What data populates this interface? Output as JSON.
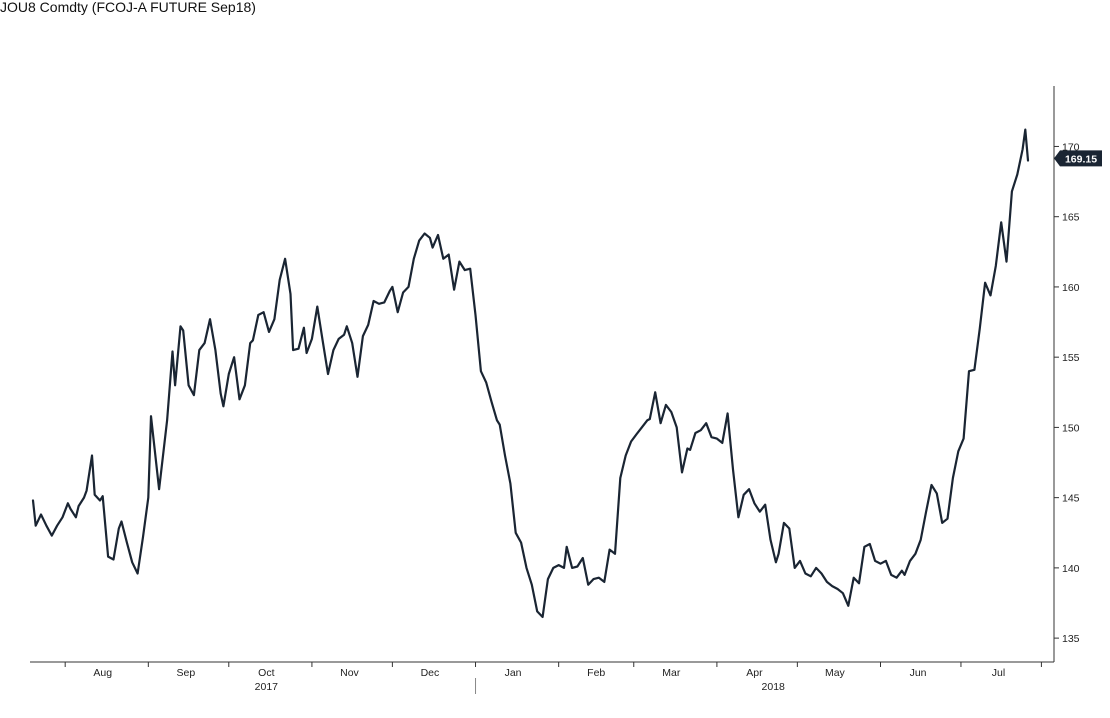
{
  "title": "JOU8 Comdty (FCOJ-A FUTURE Sep18)",
  "chart_data": {
    "type": "line",
    "title": "JOU8 Comdty (FCOJ-A FUTURE Sep18)",
    "xlabel": "",
    "ylabel": "",
    "y_axis_side": "right",
    "ylim": [
      133.3,
      175.3
    ],
    "y_ticks": [
      135,
      140,
      145,
      150,
      155,
      160,
      165,
      170
    ],
    "x_range": [
      "2017-07-20",
      "2018-07-26"
    ],
    "x_ticks": [
      {
        "date": "2017-08-15",
        "label": "Aug"
      },
      {
        "date": "2017-09-15",
        "label": "Sep"
      },
      {
        "date": "2017-10-15",
        "label": "Oct"
      },
      {
        "date": "2017-11-15",
        "label": "Nov"
      },
      {
        "date": "2017-12-15",
        "label": "Dec"
      },
      {
        "date": "2018-01-15",
        "label": "Jan"
      },
      {
        "date": "2018-02-15",
        "label": "Feb"
      },
      {
        "date": "2018-03-15",
        "label": "Mar"
      },
      {
        "date": "2018-04-15",
        "label": "Apr"
      },
      {
        "date": "2018-05-15",
        "label": "May"
      },
      {
        "date": "2018-06-15",
        "label": "Jun"
      },
      {
        "date": "2018-07-15",
        "label": "Jul"
      }
    ],
    "year_labels": [
      {
        "date": "2017-10-15",
        "label": "2017"
      },
      {
        "date": "2018-04-22",
        "label": "2018"
      }
    ],
    "year_separator": "2018-01-01",
    "last_value": "169.15",
    "colors": {
      "line": "#1a2533",
      "last_badge": "#1a2533",
      "axis": "#333333"
    },
    "series": [
      {
        "values": [
          [
            "2017-07-20",
            144.8
          ],
          [
            "2017-07-21",
            143.0
          ],
          [
            "2017-07-23",
            143.8
          ],
          [
            "2017-07-25",
            143.0
          ],
          [
            "2017-07-27",
            142.3
          ],
          [
            "2017-07-29",
            143.0
          ],
          [
            "2017-07-31",
            143.6
          ],
          [
            "2017-08-02",
            144.6
          ],
          [
            "2017-08-03",
            144.2
          ],
          [
            "2017-08-05",
            143.6
          ],
          [
            "2017-08-06",
            144.4
          ],
          [
            "2017-08-08",
            145.0
          ],
          [
            "2017-08-09",
            145.5
          ],
          [
            "2017-08-11",
            148.0
          ],
          [
            "2017-08-12",
            145.2
          ],
          [
            "2017-08-14",
            144.8
          ],
          [
            "2017-08-15",
            145.1
          ],
          [
            "2017-08-17",
            140.8
          ],
          [
            "2017-08-19",
            140.6
          ],
          [
            "2017-08-21",
            142.8
          ],
          [
            "2017-08-22",
            143.3
          ],
          [
            "2017-08-24",
            141.8
          ],
          [
            "2017-08-26",
            140.4
          ],
          [
            "2017-08-28",
            139.6
          ],
          [
            "2017-08-30",
            142.2
          ],
          [
            "2017-09-01",
            145.0
          ],
          [
            "2017-09-02",
            150.8
          ],
          [
            "2017-09-05",
            145.6
          ],
          [
            "2017-09-08",
            150.5
          ],
          [
            "2017-09-10",
            155.4
          ],
          [
            "2017-09-11",
            153.0
          ],
          [
            "2017-09-13",
            157.2
          ],
          [
            "2017-09-14",
            156.9
          ],
          [
            "2017-09-16",
            153.0
          ],
          [
            "2017-09-18",
            152.3
          ],
          [
            "2017-09-20",
            155.5
          ],
          [
            "2017-09-22",
            156.0
          ],
          [
            "2017-09-24",
            157.7
          ],
          [
            "2017-09-26",
            155.5
          ],
          [
            "2017-09-28",
            152.4
          ],
          [
            "2017-09-29",
            151.5
          ],
          [
            "2017-10-01",
            153.8
          ],
          [
            "2017-10-03",
            155.0
          ],
          [
            "2017-10-05",
            152.0
          ],
          [
            "2017-10-07",
            153.0
          ],
          [
            "2017-10-09",
            156.0
          ],
          [
            "2017-10-10",
            156.2
          ],
          [
            "2017-10-12",
            158.0
          ],
          [
            "2017-10-14",
            158.2
          ],
          [
            "2017-10-16",
            156.8
          ],
          [
            "2017-10-18",
            157.7
          ],
          [
            "2017-10-20",
            160.5
          ],
          [
            "2017-10-22",
            162.0
          ],
          [
            "2017-10-24",
            159.5
          ],
          [
            "2017-10-25",
            155.5
          ],
          [
            "2017-10-27",
            155.6
          ],
          [
            "2017-10-29",
            157.1
          ],
          [
            "2017-10-30",
            155.3
          ],
          [
            "2017-11-01",
            156.3
          ],
          [
            "2017-11-03",
            158.6
          ],
          [
            "2017-11-05",
            156.2
          ],
          [
            "2017-11-07",
            153.8
          ],
          [
            "2017-11-09",
            155.5
          ],
          [
            "2017-11-11",
            156.3
          ],
          [
            "2017-11-13",
            156.6
          ],
          [
            "2017-11-14",
            157.2
          ],
          [
            "2017-11-16",
            156.0
          ],
          [
            "2017-11-18",
            153.6
          ],
          [
            "2017-11-20",
            156.5
          ],
          [
            "2017-11-22",
            157.3
          ],
          [
            "2017-11-24",
            159.0
          ],
          [
            "2017-11-26",
            158.8
          ],
          [
            "2017-11-28",
            158.9
          ],
          [
            "2017-11-30",
            159.7
          ],
          [
            "2017-12-01",
            160.0
          ],
          [
            "2017-12-03",
            158.2
          ],
          [
            "2017-12-05",
            159.6
          ],
          [
            "2017-12-07",
            160.0
          ],
          [
            "2017-12-09",
            162.0
          ],
          [
            "2017-12-11",
            163.3
          ],
          [
            "2017-12-13",
            163.8
          ],
          [
            "2017-12-15",
            163.5
          ],
          [
            "2017-12-16",
            162.8
          ],
          [
            "2017-12-18",
            163.7
          ],
          [
            "2017-12-20",
            162.0
          ],
          [
            "2017-12-22",
            162.3
          ],
          [
            "2017-12-24",
            159.8
          ],
          [
            "2017-12-26",
            161.8
          ],
          [
            "2017-12-28",
            161.2
          ],
          [
            "2017-12-30",
            161.3
          ],
          [
            "2018-01-01",
            158.0
          ],
          [
            "2018-01-03",
            154.0
          ],
          [
            "2018-01-05",
            153.2
          ],
          [
            "2018-01-07",
            151.8
          ],
          [
            "2018-01-09",
            150.5
          ],
          [
            "2018-01-10",
            150.2
          ],
          [
            "2018-01-12",
            148.0
          ],
          [
            "2018-01-14",
            146.0
          ],
          [
            "2018-01-16",
            142.5
          ],
          [
            "2018-01-18",
            141.8
          ],
          [
            "2018-01-20",
            140.0
          ],
          [
            "2018-01-22",
            138.8
          ],
          [
            "2018-01-24",
            136.9
          ],
          [
            "2018-01-26",
            136.5
          ],
          [
            "2018-01-28",
            139.2
          ],
          [
            "2018-01-30",
            140.0
          ],
          [
            "2018-02-01",
            140.2
          ],
          [
            "2018-02-03",
            140.0
          ],
          [
            "2018-02-04",
            141.5
          ],
          [
            "2018-02-06",
            140.0
          ],
          [
            "2018-02-08",
            140.1
          ],
          [
            "2018-02-10",
            140.7
          ],
          [
            "2018-02-12",
            138.8
          ],
          [
            "2018-02-14",
            139.2
          ],
          [
            "2018-02-16",
            139.3
          ],
          [
            "2018-02-18",
            139.0
          ],
          [
            "2018-02-20",
            141.3
          ],
          [
            "2018-02-22",
            141.0
          ],
          [
            "2018-02-24",
            146.4
          ],
          [
            "2018-02-26",
            148.0
          ],
          [
            "2018-02-28",
            149.0
          ],
          [
            "2018-03-02",
            149.5
          ],
          [
            "2018-03-04",
            150.0
          ],
          [
            "2018-03-06",
            150.5
          ],
          [
            "2018-03-07",
            150.6
          ],
          [
            "2018-03-09",
            152.5
          ],
          [
            "2018-03-11",
            150.3
          ],
          [
            "2018-03-13",
            151.6
          ],
          [
            "2018-03-15",
            151.1
          ],
          [
            "2018-03-17",
            150.0
          ],
          [
            "2018-03-19",
            146.8
          ],
          [
            "2018-03-21",
            148.5
          ],
          [
            "2018-03-22",
            148.4
          ],
          [
            "2018-03-24",
            149.6
          ],
          [
            "2018-03-26",
            149.8
          ],
          [
            "2018-03-28",
            150.3
          ],
          [
            "2018-03-30",
            149.3
          ],
          [
            "2018-04-01",
            149.2
          ],
          [
            "2018-04-03",
            148.9
          ],
          [
            "2018-04-05",
            151.0
          ],
          [
            "2018-04-07",
            147.0
          ],
          [
            "2018-04-09",
            143.6
          ],
          [
            "2018-04-11",
            145.2
          ],
          [
            "2018-04-13",
            145.6
          ],
          [
            "2018-04-15",
            144.6
          ],
          [
            "2018-04-17",
            144.0
          ],
          [
            "2018-04-19",
            144.5
          ],
          [
            "2018-04-21",
            142.0
          ],
          [
            "2018-04-23",
            140.4
          ],
          [
            "2018-04-24",
            141.0
          ],
          [
            "2018-04-26",
            143.2
          ],
          [
            "2018-04-28",
            142.8
          ],
          [
            "2018-04-30",
            140.0
          ],
          [
            "2018-05-02",
            140.5
          ],
          [
            "2018-05-04",
            139.6
          ],
          [
            "2018-05-06",
            139.4
          ],
          [
            "2018-05-08",
            140.0
          ],
          [
            "2018-05-10",
            139.6
          ],
          [
            "2018-05-12",
            139.0
          ],
          [
            "2018-05-14",
            138.7
          ],
          [
            "2018-05-16",
            138.5
          ],
          [
            "2018-05-18",
            138.2
          ],
          [
            "2018-05-20",
            137.3
          ],
          [
            "2018-05-22",
            139.3
          ],
          [
            "2018-05-24",
            138.9
          ],
          [
            "2018-05-26",
            141.5
          ],
          [
            "2018-05-28",
            141.7
          ],
          [
            "2018-05-30",
            140.5
          ],
          [
            "2018-06-01",
            140.3
          ],
          [
            "2018-06-03",
            140.5
          ],
          [
            "2018-06-05",
            139.5
          ],
          [
            "2018-06-07",
            139.3
          ],
          [
            "2018-06-09",
            139.8
          ],
          [
            "2018-06-10",
            139.5
          ],
          [
            "2018-06-12",
            140.5
          ],
          [
            "2018-06-14",
            141.0
          ],
          [
            "2018-06-16",
            142.0
          ],
          [
            "2018-06-18",
            144.0
          ],
          [
            "2018-06-20",
            145.9
          ],
          [
            "2018-06-22",
            145.3
          ],
          [
            "2018-06-24",
            143.2
          ],
          [
            "2018-06-26",
            143.5
          ],
          [
            "2018-06-28",
            146.4
          ],
          [
            "2018-06-30",
            148.3
          ],
          [
            "2018-07-02",
            149.2
          ],
          [
            "2018-07-04",
            154.0
          ],
          [
            "2018-07-06",
            154.1
          ],
          [
            "2018-07-08",
            157.0
          ],
          [
            "2018-07-10",
            160.3
          ],
          [
            "2018-07-12",
            159.4
          ],
          [
            "2018-07-14",
            161.5
          ],
          [
            "2018-07-16",
            164.6
          ],
          [
            "2018-07-18",
            161.8
          ],
          [
            "2018-07-20",
            166.8
          ],
          [
            "2018-07-22",
            168.0
          ],
          [
            "2018-07-24",
            169.8
          ],
          [
            "2018-07-25",
            171.2
          ],
          [
            "2018-07-26",
            169.0
          ]
        ]
      }
    ]
  }
}
